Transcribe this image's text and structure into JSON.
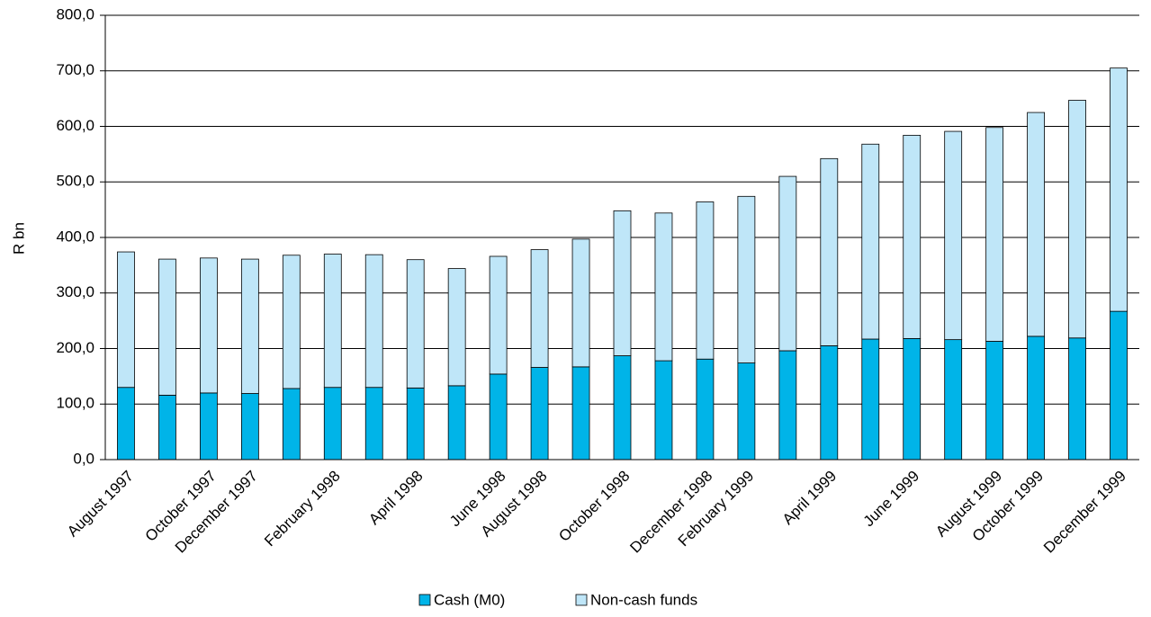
{
  "chart_data": {
    "type": "stacked_bar",
    "y_label": "R bn",
    "categories": [
      "August 1997",
      null,
      "October 1997",
      "December 1997",
      null,
      "February 1998",
      null,
      "April 1998",
      null,
      "June 1998",
      "August 1998",
      null,
      "October 1998",
      null,
      "December 1998",
      "February 1999",
      null,
      "April 1999",
      null,
      "June 1999",
      null,
      "August 1999",
      "October 1999",
      null,
      "December 1999"
    ],
    "series": [
      {
        "name": "Cash (M0)",
        "color": "#00b4e8",
        "values": [
          130,
          116,
          120,
          119,
          128,
          130,
          130,
          129,
          133,
          154,
          166,
          167,
          187,
          178,
          181,
          174,
          196,
          205,
          217,
          218,
          216,
          213,
          222,
          219,
          267
        ]
      },
      {
        "name": "Non-cash funds",
        "color": "#bfe6f8",
        "values": [
          244,
          245,
          243,
          242,
          240,
          240,
          239,
          231,
          211,
          212,
          212,
          230,
          261,
          266,
          283,
          300,
          314,
          337,
          351,
          366,
          375,
          385,
          403,
          428,
          438
        ]
      }
    ],
    "ylim": [
      0,
      800
    ],
    "yticks": [
      {
        "value": 0,
        "label": "0,0"
      },
      {
        "value": 100,
        "label": "100,0"
      },
      {
        "value": 200,
        "label": "200,0"
      },
      {
        "value": 300,
        "label": "300,0"
      },
      {
        "value": 400,
        "label": "400,0"
      },
      {
        "value": 500,
        "label": "500,0"
      },
      {
        "value": 600,
        "label": "600,0"
      },
      {
        "value": 700,
        "label": "700,0"
      },
      {
        "value": 800,
        "label": "800,0"
      }
    ],
    "grid": true,
    "legend": "bottom"
  }
}
